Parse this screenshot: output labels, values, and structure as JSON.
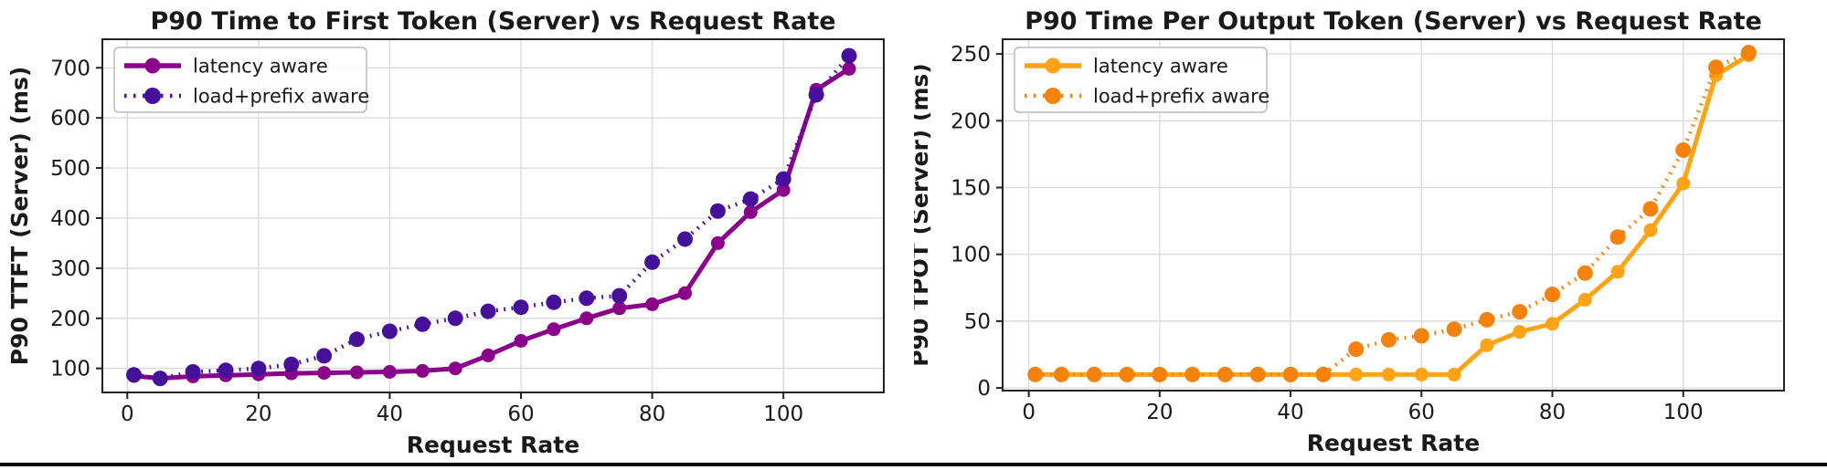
{
  "page": {
    "background": "#ffffff",
    "footer_bar_color": "#000000"
  },
  "chart_data": [
    {
      "type": "line",
      "title": "P90 Time to First Token (Server) vs Request Rate",
      "xlabel": "Request Rate",
      "ylabel": "P90 TTFT (Server) (ms)",
      "x": [
        1,
        5,
        10,
        15,
        20,
        25,
        30,
        35,
        40,
        45,
        50,
        55,
        60,
        65,
        70,
        75,
        80,
        85,
        90,
        95,
        100,
        105,
        110
      ],
      "series": [
        {
          "name": "latency aware",
          "style": "solid",
          "color": "#8B008B",
          "values": [
            85,
            80,
            84,
            86,
            88,
            90,
            91,
            92,
            93,
            95,
            100,
            126,
            155,
            178,
            200,
            220,
            228,
            250,
            350,
            412,
            456,
            656,
            698
          ]
        },
        {
          "name": "load+prefix aware",
          "style": "dotted",
          "color": "#46109B",
          "values": [
            87,
            80,
            93,
            96,
            100,
            108,
            125,
            158,
            174,
            188,
            200,
            214,
            222,
            232,
            240,
            245,
            312,
            358,
            414,
            438,
            478,
            646,
            724
          ]
        }
      ],
      "xticks": [
        0,
        20,
        40,
        60,
        80,
        100
      ],
      "yticks": [
        100,
        200,
        300,
        400,
        500,
        600,
        700
      ],
      "xlim": [
        -3.8,
        115.3
      ],
      "ylim": [
        52,
        757
      ],
      "grid": true,
      "grid_color": "#DCDCDC",
      "legend_position": "upper-left",
      "text_color": "#1a1a1a"
    },
    {
      "type": "line",
      "title": "P90 Time Per Output Token (Server) vs Request Rate",
      "xlabel": "Request Rate",
      "ylabel": "P90 TPOT (Server) (ms)",
      "x": [
        1,
        5,
        10,
        15,
        20,
        25,
        30,
        35,
        40,
        45,
        50,
        55,
        60,
        65,
        70,
        75,
        80,
        85,
        90,
        95,
        100,
        105,
        110
      ],
      "series": [
        {
          "name": "latency aware",
          "style": "solid",
          "color": "#FFA416",
          "values": [
            10,
            10,
            10,
            10,
            10,
            10,
            10,
            10,
            10,
            10,
            10,
            10,
            10,
            10,
            32,
            42,
            48,
            66,
            87,
            118,
            153,
            234,
            249
          ]
        },
        {
          "name": "load+prefix aware",
          "style": "dotted",
          "color": "#F5820D",
          "values": [
            10,
            10,
            10,
            10,
            10,
            10,
            10,
            10,
            10,
            10,
            29,
            36,
            39,
            44,
            51,
            57,
            70,
            86,
            113,
            134,
            178,
            240,
            251
          ]
        }
      ],
      "xticks": [
        0,
        20,
        40,
        60,
        80,
        100
      ],
      "yticks": [
        0,
        50,
        100,
        150,
        200,
        250
      ],
      "xlim": [
        -4,
        115.4
      ],
      "ylim": [
        -2,
        261
      ],
      "grid": true,
      "grid_color": "#DCDCDC",
      "legend_position": "upper-left",
      "text_color": "#1a1a1a"
    }
  ]
}
